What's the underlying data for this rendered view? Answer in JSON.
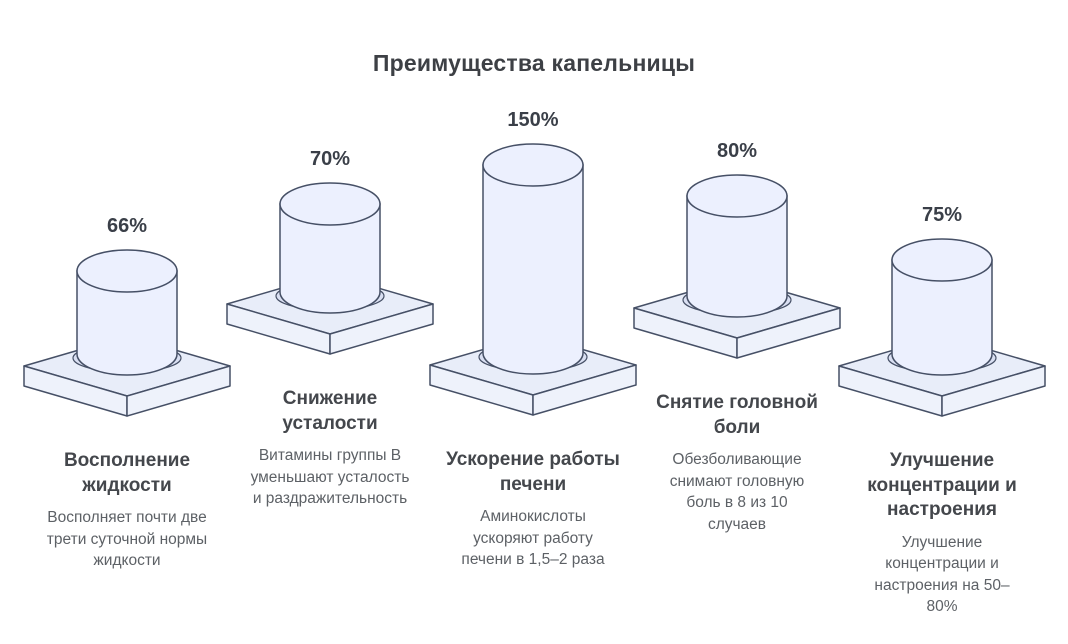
{
  "title": "Преимущества капельницы",
  "palette": {
    "outline": "#465066",
    "cylinder_fill": "#ecf0fe",
    "platform_top": "#e8edf9",
    "platform_side": "#eef2fb",
    "shadow_fill": "#d9dff2",
    "title_color": "#3d4045",
    "heading_color": "#44474c",
    "description_color": "#5d6166"
  },
  "chart_data": {
    "type": "bar",
    "style": "isometric-3d-cylinders-on-pedestals",
    "title": "Преимущества капельницы",
    "unit": "%",
    "legend_position": "none",
    "grid": false,
    "items": [
      {
        "value": 66,
        "value_label": "66%",
        "label": "Восполнение жидкости",
        "description": "Восполняет почти две трети суточной нормы жидкости"
      },
      {
        "value": 70,
        "value_label": "70%",
        "label": "Снижение усталости",
        "description": "Витамины группы В уменьшают усталость и раздражительность"
      },
      {
        "value": 150,
        "value_label": "150%",
        "label": "Ускорение работы печени",
        "description": "Аминокислоты ускоряют работу печени в 1,5–2 раза"
      },
      {
        "value": 80,
        "value_label": "80%",
        "label": "Снятие головной боли",
        "description": "Обезболивающие снимают головную боль в 8 из 10 случаев"
      },
      {
        "value": 75,
        "value_label": "75%",
        "label": "Улучшение концентрации и настроения",
        "description": "Улучшение концентрации и настроения на 50–80%"
      }
    ]
  }
}
